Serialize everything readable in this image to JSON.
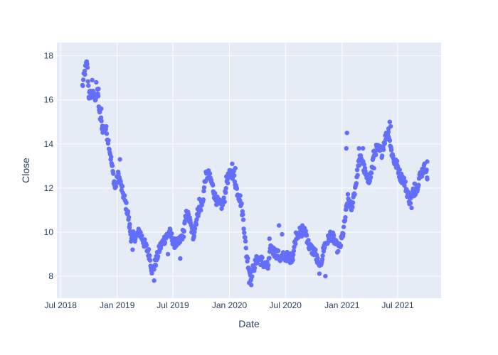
{
  "chart_data": {
    "type": "scatter",
    "xlabel": "Date",
    "ylabel": "Close",
    "x_ticks": [
      {
        "label": "Jul 2018",
        "date": "2018-07-01"
      },
      {
        "label": "Jan 2019",
        "date": "2019-01-01"
      },
      {
        "label": "Jul 2019",
        "date": "2019-07-01"
      },
      {
        "label": "Jan 2020",
        "date": "2020-01-01"
      },
      {
        "label": "Jul 2020",
        "date": "2020-07-01"
      },
      {
        "label": "Jan 2021",
        "date": "2021-01-01"
      },
      {
        "label": "Jul 2021",
        "date": "2021-07-01"
      }
    ],
    "y_ticks": [
      "8",
      "10",
      "12",
      "14",
      "16",
      "18"
    ],
    "xlim": [
      "2018-06-19",
      "2021-11-19"
    ],
    "ylim": [
      7.0,
      18.6
    ],
    "marker_color": "#636efa",
    "plot_bgcolor": "#e5ecf6",
    "grid": true,
    "series": [
      {
        "anchors": [
          [
            "2018-09-10",
            16.6
          ],
          [
            "2018-09-18",
            17.3
          ],
          [
            "2018-09-25",
            17.7
          ],
          [
            "2018-10-01",
            16.2
          ],
          [
            "2018-10-10",
            16.3
          ],
          [
            "2018-10-20",
            16.1
          ],
          [
            "2018-10-30",
            16.3
          ],
          [
            "2018-11-05",
            15.3
          ],
          [
            "2018-11-15",
            14.7
          ],
          [
            "2018-11-25",
            14.7
          ],
          [
            "2018-12-05",
            14.0
          ],
          [
            "2018-12-15",
            13.0
          ],
          [
            "2018-12-25",
            12.0
          ],
          [
            "2019-01-05",
            12.6
          ],
          [
            "2019-01-15",
            12.0
          ],
          [
            "2019-01-25",
            11.5
          ],
          [
            "2019-02-05",
            10.8
          ],
          [
            "2019-02-15",
            9.8
          ],
          [
            "2019-02-28",
            9.8
          ],
          [
            "2019-03-15",
            10.0
          ],
          [
            "2019-03-30",
            9.5
          ],
          [
            "2019-04-15",
            9.0
          ],
          [
            "2019-04-25",
            8.2
          ],
          [
            "2019-05-05",
            8.6
          ],
          [
            "2019-05-20",
            9.3
          ],
          [
            "2019-06-05",
            9.7
          ],
          [
            "2019-06-20",
            10.0
          ],
          [
            "2019-07-05",
            9.5
          ],
          [
            "2019-07-20",
            9.5
          ],
          [
            "2019-08-05",
            10.0
          ],
          [
            "2019-08-15",
            10.9
          ],
          [
            "2019-08-25",
            10.5
          ],
          [
            "2019-09-05",
            9.8
          ],
          [
            "2019-09-20",
            10.9
          ],
          [
            "2019-10-05",
            11.3
          ],
          [
            "2019-10-15",
            12.5
          ],
          [
            "2019-10-25",
            12.6
          ],
          [
            "2019-11-05",
            12.2
          ],
          [
            "2019-11-15",
            11.6
          ],
          [
            "2019-11-25",
            11.3
          ],
          [
            "2019-12-05",
            11.2
          ],
          [
            "2019-12-15",
            11.4
          ],
          [
            "2019-12-22",
            12.3
          ],
          [
            "2020-01-05",
            12.7
          ],
          [
            "2020-01-15",
            12.6
          ],
          [
            "2020-01-25",
            11.9
          ],
          [
            "2020-02-05",
            11.5
          ],
          [
            "2020-02-15",
            10.6
          ],
          [
            "2020-02-25",
            9.0
          ],
          [
            "2020-03-10",
            8.0
          ],
          [
            "2020-03-20",
            8.4
          ],
          [
            "2020-04-01",
            8.8
          ],
          [
            "2020-04-15",
            8.7
          ],
          [
            "2020-04-25",
            8.5
          ],
          [
            "2020-05-05",
            8.4
          ],
          [
            "2020-05-15",
            9.3
          ],
          [
            "2020-05-25",
            9.1
          ],
          [
            "2020-06-05",
            9.0
          ],
          [
            "2020-06-15",
            8.8
          ],
          [
            "2020-06-25",
            8.9
          ],
          [
            "2020-07-05",
            8.9
          ],
          [
            "2020-07-15",
            8.8
          ],
          [
            "2020-07-25",
            8.9
          ],
          [
            "2020-08-05",
            9.9
          ],
          [
            "2020-08-20",
            10.0
          ],
          [
            "2020-09-05",
            10.0
          ],
          [
            "2020-09-15",
            9.4
          ],
          [
            "2020-09-25",
            9.2
          ],
          [
            "2020-10-05",
            9.1
          ],
          [
            "2020-10-20",
            8.3
          ],
          [
            "2020-11-05",
            9.4
          ],
          [
            "2020-11-15",
            9.6
          ],
          [
            "2020-11-25",
            9.9
          ],
          [
            "2020-12-05",
            9.7
          ],
          [
            "2020-12-15",
            9.3
          ],
          [
            "2020-12-25",
            9.3
          ],
          [
            "2021-01-05",
            10.0
          ],
          [
            "2021-01-12",
            10.7
          ],
          [
            "2021-01-20",
            11.5
          ],
          [
            "2021-02-01",
            11.1
          ],
          [
            "2021-02-15",
            12.2
          ],
          [
            "2021-02-25",
            13.2
          ],
          [
            "2021-03-05",
            13.4
          ],
          [
            "2021-03-15",
            12.8
          ],
          [
            "2021-03-25",
            12.3
          ],
          [
            "2021-04-05",
            12.6
          ],
          [
            "2021-04-15",
            13.6
          ],
          [
            "2021-04-25",
            13.8
          ],
          [
            "2021-05-10",
            13.6
          ],
          [
            "2021-05-20",
            14.2
          ],
          [
            "2021-06-01",
            14.6
          ],
          [
            "2021-06-10",
            13.7
          ],
          [
            "2021-06-20",
            13.2
          ],
          [
            "2021-06-30",
            13.0
          ],
          [
            "2021-07-10",
            12.5
          ],
          [
            "2021-07-20",
            12.4
          ],
          [
            "2021-08-01",
            11.8
          ],
          [
            "2021-08-10",
            11.4
          ],
          [
            "2021-08-20",
            11.8
          ],
          [
            "2021-09-01",
            12.0
          ],
          [
            "2021-09-10",
            12.5
          ],
          [
            "2021-09-20",
            12.8
          ],
          [
            "2021-09-30",
            13.0
          ],
          [
            "2021-10-05",
            12.4
          ]
        ],
        "extra_points": [
          [
            "2018-10-25",
            16.8
          ],
          [
            "2018-11-01",
            16.5
          ],
          [
            "2018-11-10",
            15.6
          ],
          [
            "2018-10-12",
            16.9
          ],
          [
            "2019-01-10",
            13.3
          ],
          [
            "2019-02-10",
            10.2
          ],
          [
            "2019-02-20",
            9.2
          ],
          [
            "2019-05-01",
            7.8
          ],
          [
            "2019-06-15",
            9.0
          ],
          [
            "2019-07-25",
            8.8
          ],
          [
            "2019-09-25",
            11.5
          ],
          [
            "2020-01-10",
            13.1
          ],
          [
            "2020-01-20",
            12.9
          ],
          [
            "2020-03-05",
            7.7
          ],
          [
            "2020-03-12",
            7.6
          ],
          [
            "2020-05-10",
            9.7
          ],
          [
            "2020-06-10",
            10.3
          ],
          [
            "2020-06-20",
            9.9
          ],
          [
            "2020-08-25",
            10.3
          ],
          [
            "2020-11-08",
            8.0
          ],
          [
            "2021-01-15",
            13.8
          ],
          [
            "2021-01-17",
            14.5
          ],
          [
            "2021-02-25",
            13.8
          ],
          [
            "2021-03-10",
            13.8
          ],
          [
            "2021-04-15",
            12.9
          ],
          [
            "2021-05-05",
            13.9
          ],
          [
            "2021-06-05",
            15.0
          ],
          [
            "2021-06-08",
            14.8
          ],
          [
            "2021-06-02",
            14.3
          ],
          [
            "2021-08-15",
            11.1
          ],
          [
            "2021-08-25",
            12.2
          ],
          [
            "2021-10-05",
            13.2
          ]
        ]
      }
    ]
  }
}
